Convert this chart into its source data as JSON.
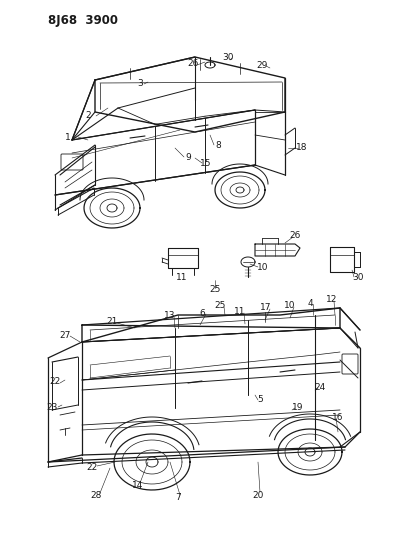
{
  "title": "8J68  3900",
  "bg_color": "#ffffff",
  "line_color": "#1a1a1a",
  "title_fontsize": 8.5,
  "label_fontsize": 6.5,
  "fig_width": 3.99,
  "fig_height": 5.33,
  "dpi": 100
}
